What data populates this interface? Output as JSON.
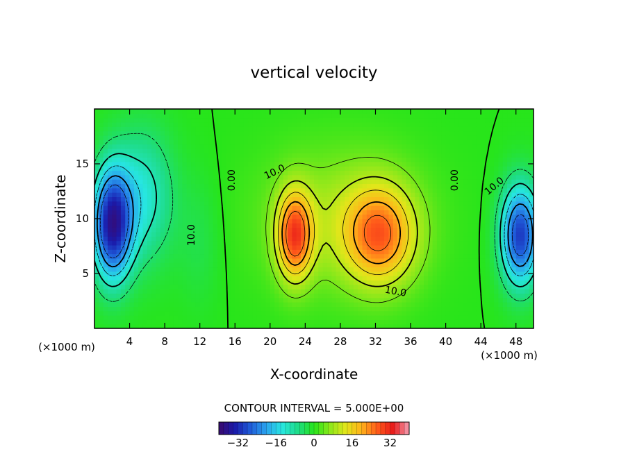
{
  "chart_data": {
    "type": "heatmap",
    "title": "vertical velocity",
    "xlabel": "X-coordinate",
    "ylabel": "Z-coordinate",
    "x_unit": "(×1000 m)",
    "y_unit": "(×1000 m)",
    "xlim": [
      0,
      50
    ],
    "ylim": [
      0,
      20
    ],
    "x_ticks": [
      4,
      8,
      12,
      16,
      20,
      24,
      28,
      32,
      36,
      40,
      44,
      48
    ],
    "y_ticks": [
      5,
      10,
      15
    ],
    "x_tick_labels": [
      "4",
      "8",
      "12",
      "16",
      "20",
      "24",
      "28",
      "32",
      "36",
      "40",
      "44",
      "48"
    ],
    "y_tick_labels": [
      "5",
      "10",
      "15"
    ],
    "contour_interval_text": "CONTOUR INTERVAL = 5.000E+00",
    "contour_labels": [
      {
        "text": "0.00",
        "x": 15.6,
        "z": 13.5,
        "angle": -90
      },
      {
        "text": "10.0",
        "x": 20.5,
        "z": 14.3,
        "angle": -25
      },
      {
        "text": "10.0",
        "x": 11.0,
        "z": 8.5,
        "angle": -90
      },
      {
        "text": "10.0",
        "x": 34.3,
        "z": 3.4,
        "angle": 10
      },
      {
        "text": "0.00",
        "x": 41.0,
        "z": 13.5,
        "angle": -90
      },
      {
        "text": "10.0",
        "x": 45.5,
        "z": 13.0,
        "angle": -40
      }
    ],
    "field_blobs": [
      {
        "x": 2.0,
        "z": 9.5,
        "sx": 2.2,
        "sz": 5.0,
        "amp": -34
      },
      {
        "x": 5.5,
        "z": 12.0,
        "sx": 3.5,
        "sz": 6.0,
        "amp": -12
      },
      {
        "x": 48.5,
        "z": 8.5,
        "sx": 2.2,
        "sz": 4.5,
        "amp": -30
      },
      {
        "x": 22.8,
        "z": 8.5,
        "sx": 2.0,
        "sz": 4.0,
        "amp": 26
      },
      {
        "x": 32.5,
        "z": 8.5,
        "sx": 4.0,
        "sz": 4.5,
        "amp": 22
      },
      {
        "x": 28.0,
        "z": 10.0,
        "sx": 9.0,
        "sz": 6.5,
        "amp": 8
      },
      {
        "x": 12.0,
        "z": 8.0,
        "sx": 2.5,
        "sz": 6.0,
        "amp": -3
      }
    ],
    "colorbar": {
      "min": -40,
      "max": 40,
      "ticks": [
        -32,
        -16,
        0,
        16,
        32
      ],
      "tick_labels": [
        "−32",
        "−16",
        "0",
        "16",
        "32"
      ],
      "colors": [
        "#3a0a6e",
        "#1a1aaa",
        "#1f5cd9",
        "#2aa4ee",
        "#27e6e0",
        "#1edc86",
        "#27e51a",
        "#8ee81a",
        "#e2e61a",
        "#ffb21a",
        "#ff5a1a",
        "#e81a1a",
        "#f5a0b4"
      ]
    }
  }
}
